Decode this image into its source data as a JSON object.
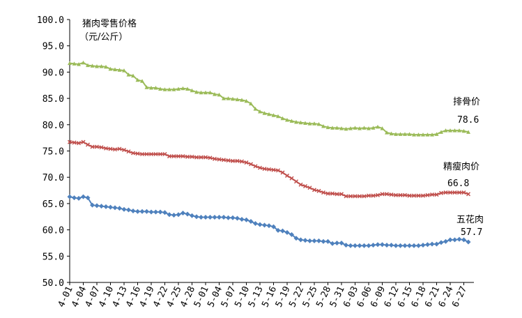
{
  "chart_data": {
    "type": "line",
    "title": "猪肉零售价格",
    "subtitle": "（元/公斤）",
    "categories": [
      "4-01",
      null,
      null,
      "4-04",
      null,
      null,
      "4-07",
      null,
      null,
      "4-10",
      null,
      null,
      "4-13",
      null,
      null,
      "4-16",
      null,
      null,
      "4-19",
      null,
      null,
      "4-22",
      null,
      null,
      "4-25",
      null,
      null,
      "4-28",
      null,
      null,
      "5-01",
      null,
      null,
      "5-04",
      null,
      null,
      "5-07",
      null,
      null,
      "5-10",
      null,
      null,
      "5-13",
      null,
      null,
      "5-16",
      null,
      null,
      "5-19",
      null,
      null,
      "5-22",
      null,
      null,
      "5-25",
      null,
      null,
      "5-28",
      null,
      null,
      "5-31",
      null,
      null,
      "6-03",
      null,
      null,
      "6-06",
      null,
      null,
      "6-09",
      null,
      null,
      "6-12",
      null,
      null,
      "6-15",
      null,
      null,
      "6-18",
      null,
      null,
      "6-21",
      null,
      null,
      "6-24",
      null,
      null,
      "6-27",
      null
    ],
    "series": [
      {
        "name": "排骨价",
        "color": "#9bbb59",
        "marker": "triangle",
        "values": [
          91.7,
          91.6,
          91.5,
          91.8,
          91.3,
          91.2,
          91.1,
          91.1,
          91.0,
          90.6,
          90.5,
          90.4,
          90.3,
          89.5,
          89.3,
          88.5,
          88.3,
          87.1,
          87.0,
          87.0,
          86.8,
          86.7,
          86.7,
          86.7,
          86.8,
          86.9,
          86.8,
          86.5,
          86.2,
          86.1,
          86.1,
          86.1,
          85.8,
          85.7,
          85.0,
          85.0,
          84.9,
          84.8,
          84.7,
          84.5,
          84.0,
          83.0,
          82.5,
          82.2,
          82.0,
          81.8,
          81.6,
          81.2,
          80.9,
          80.7,
          80.5,
          80.4,
          80.3,
          80.2,
          80.2,
          80.1,
          79.7,
          79.5,
          79.4,
          79.4,
          79.3,
          79.2,
          79.3,
          79.4,
          79.3,
          79.4,
          79.3,
          79.4,
          79.6,
          79.3,
          78.5,
          78.3,
          78.2,
          78.2,
          78.2,
          78.2,
          78.1,
          78.1,
          78.1,
          78.1,
          78.1,
          78.2,
          78.6,
          78.9,
          78.9,
          78.9,
          78.9,
          78.8,
          78.6
        ]
      },
      {
        "name": "精瘦肉价",
        "color": "#c0504d",
        "marker": "x",
        "values": [
          76.7,
          76.6,
          76.5,
          76.7,
          76.2,
          75.8,
          75.8,
          75.7,
          75.5,
          75.4,
          75.3,
          75.4,
          75.2,
          74.9,
          74.6,
          74.5,
          74.4,
          74.4,
          74.4,
          74.4,
          74.4,
          74.4,
          74.0,
          74.0,
          74.0,
          74.0,
          73.9,
          73.9,
          73.8,
          73.8,
          73.8,
          73.7,
          73.5,
          73.4,
          73.3,
          73.2,
          73.1,
          73.1,
          73.0,
          72.8,
          72.5,
          72.1,
          71.8,
          71.6,
          71.5,
          71.4,
          71.3,
          70.9,
          70.3,
          69.8,
          69.2,
          68.6,
          68.3,
          68.0,
          67.6,
          67.4,
          67.1,
          66.9,
          66.9,
          66.8,
          66.8,
          66.4,
          66.4,
          66.4,
          66.4,
          66.4,
          66.5,
          66.5,
          66.6,
          66.8,
          66.8,
          66.7,
          66.6,
          66.6,
          66.6,
          66.5,
          66.5,
          66.5,
          66.5,
          66.6,
          66.7,
          66.7,
          67.0,
          67.1,
          67.1,
          67.1,
          67.1,
          67.1,
          66.8
        ]
      },
      {
        "name": "五花肉",
        "color": "#4f81bd",
        "marker": "diamond",
        "values": [
          66.3,
          66.1,
          66.0,
          66.3,
          66.1,
          64.7,
          64.6,
          64.5,
          64.4,
          64.3,
          64.2,
          64.1,
          63.9,
          63.8,
          63.6,
          63.5,
          63.5,
          63.5,
          63.4,
          63.4,
          63.4,
          63.3,
          62.9,
          62.8,
          62.9,
          63.2,
          63.0,
          62.7,
          62.5,
          62.4,
          62.4,
          62.4,
          62.4,
          62.4,
          62.4,
          62.3,
          62.3,
          62.2,
          62.0,
          61.9,
          61.6,
          61.2,
          61.0,
          60.9,
          60.8,
          60.6,
          59.9,
          59.8,
          59.5,
          59.1,
          58.4,
          58.1,
          58.0,
          57.9,
          57.9,
          57.9,
          57.8,
          57.8,
          57.4,
          57.5,
          57.5,
          57.1,
          57.0,
          57.0,
          57.0,
          57.0,
          57.0,
          57.1,
          57.2,
          57.2,
          57.1,
          57.1,
          57.0,
          57.0,
          57.0,
          57.0,
          57.0,
          57.0,
          57.1,
          57.2,
          57.3,
          57.3,
          57.6,
          57.8,
          58.1,
          58.1,
          58.2,
          58.1,
          57.7
        ]
      }
    ],
    "ylim": [
      50,
      100
    ],
    "yticks": [
      {
        "value": 50,
        "label": "50.0"
      },
      {
        "value": 55,
        "label": "55.0"
      },
      {
        "value": 60,
        "label": "60.0"
      },
      {
        "value": 65,
        "label": "65.0"
      },
      {
        "value": 70,
        "label": "70.0"
      },
      {
        "value": 75,
        "label": "75.0"
      },
      {
        "value": 80,
        "label": "80.0"
      },
      {
        "value": 85,
        "label": "85.0"
      },
      {
        "value": 90,
        "label": "90.0"
      },
      {
        "value": 95,
        "label": "95.0"
      },
      {
        "value": 100,
        "label": "100.0"
      }
    ],
    "grid": false
  }
}
